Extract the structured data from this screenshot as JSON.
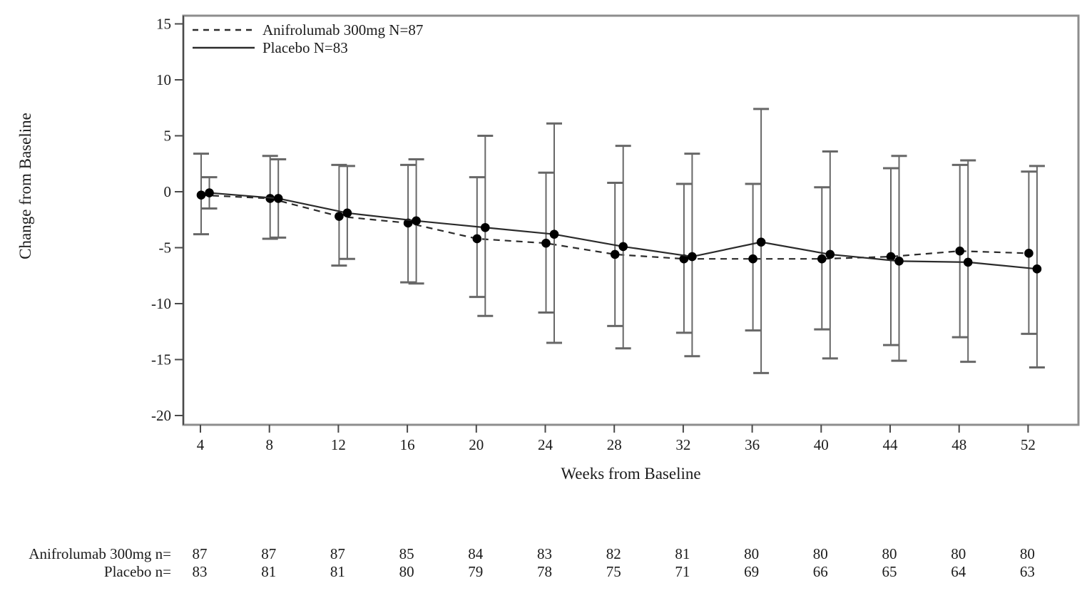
{
  "figure": {
    "background": "#ffffff",
    "text_color": "#1b1b1b",
    "border_color": "#8d8d8d",
    "axis_color": "#4a4a4a",
    "series_line_color": "#2b2b2b",
    "marker_color": "#000000",
    "errorbar_color": "#676767"
  },
  "chart_data": {
    "type": "line",
    "title": "",
    "xlabel": "Weeks from Baseline",
    "ylabel": "Change from Baseline",
    "x": [
      4,
      8,
      12,
      16,
      20,
      24,
      28,
      32,
      36,
      40,
      44,
      48,
      52
    ],
    "ylim": [
      -20,
      15
    ],
    "yticks": [
      15,
      10,
      5,
      0,
      -5,
      -10,
      -15,
      -20
    ],
    "grid": false,
    "legend_position": "top-left-inside",
    "error_bars": true,
    "series": [
      {
        "name": "Anifrolumab 300mg N=87",
        "line_style": "dashed",
        "marker": "filled-circle",
        "values": [
          -0.3,
          -0.6,
          -2.2,
          -2.8,
          -4.2,
          -4.6,
          -5.6,
          -6.0,
          -6.0,
          -6.0,
          -5.8,
          -5.3,
          -5.5
        ],
        "ci_lower": [
          -3.8,
          -4.2,
          -6.6,
          -8.1,
          -9.4,
          -10.8,
          -12.0,
          -12.6,
          -12.4,
          -12.3,
          -13.7,
          -13.0,
          -12.7
        ],
        "ci_upper": [
          3.4,
          3.2,
          2.4,
          2.4,
          1.3,
          1.7,
          0.8,
          0.7,
          0.7,
          0.4,
          2.1,
          2.4,
          1.8
        ]
      },
      {
        "name": "Placebo N=83",
        "line_style": "solid",
        "marker": "filled-circle",
        "values": [
          -0.1,
          -0.6,
          -1.9,
          -2.6,
          -3.2,
          -3.8,
          -4.9,
          -5.8,
          -4.5,
          -5.6,
          -6.2,
          -6.3,
          -6.9
        ],
        "ci_lower": [
          -1.5,
          -4.1,
          -6.0,
          -8.2,
          -11.1,
          -13.5,
          -14.0,
          -14.7,
          -16.2,
          -14.9,
          -15.1,
          -15.2,
          -15.7
        ],
        "ci_upper": [
          1.3,
          2.9,
          2.3,
          2.9,
          5.0,
          6.1,
          4.1,
          3.4,
          7.4,
          3.6,
          3.2,
          2.8,
          2.3
        ]
      }
    ]
  },
  "at_risk_table": {
    "rows": [
      {
        "label": "Anifrolumab 300mg n=",
        "counts": [
          87,
          87,
          87,
          85,
          84,
          83,
          82,
          81,
          80,
          80,
          80,
          80,
          80
        ]
      },
      {
        "label": "Placebo n=",
        "counts": [
          83,
          81,
          81,
          80,
          79,
          78,
          75,
          71,
          69,
          66,
          65,
          64,
          63
        ]
      }
    ]
  }
}
